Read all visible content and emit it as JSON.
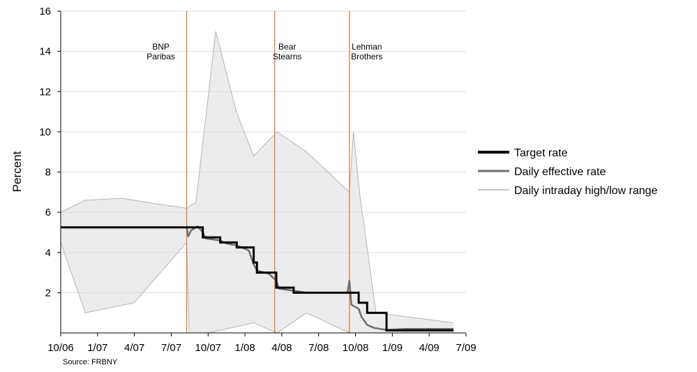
{
  "chart_data": {
    "type": "line",
    "xlabel": "",
    "ylabel": "Percent",
    "ylim": [
      0,
      16
    ],
    "xlim": [
      "2006-10",
      "2009-07"
    ],
    "x_ticks": [
      "10/06",
      "1/07",
      "4/07",
      "7/07",
      "10/07",
      "1/08",
      "4/08",
      "7/08",
      "10/08",
      "1/09",
      "4/09",
      "7/09"
    ],
    "y_ticks": [
      2,
      4,
      6,
      8,
      10,
      12,
      14,
      16
    ],
    "grid": "horizontal",
    "legend_position": "right",
    "source": "Source: FRBNY",
    "events": [
      {
        "label_lines": [
          "BNP",
          "Paribas"
        ],
        "date": "2007-08-09",
        "color": "#e07b39"
      },
      {
        "label_lines": [
          "Bear",
          "Stearns"
        ],
        "date": "2008-03-14",
        "color": "#e07b39"
      },
      {
        "label_lines": [
          "Lehman",
          "Brothers"
        ],
        "date": "2008-09-15",
        "color": "#e07b39"
      }
    ],
    "series": [
      {
        "name": "Target rate",
        "color": "#000000",
        "style": "step",
        "steps": [
          {
            "date": "2006-10-01",
            "value": 5.25
          },
          {
            "date": "2007-09-18",
            "value": 4.75
          },
          {
            "date": "2007-10-31",
            "value": 4.5
          },
          {
            "date": "2007-12-11",
            "value": 4.25
          },
          {
            "date": "2008-01-22",
            "value": 3.5
          },
          {
            "date": "2008-01-30",
            "value": 3.0
          },
          {
            "date": "2008-03-18",
            "value": 2.25
          },
          {
            "date": "2008-04-30",
            "value": 2.0
          },
          {
            "date": "2008-10-08",
            "value": 1.5
          },
          {
            "date": "2008-10-29",
            "value": 1.0
          },
          {
            "date": "2008-12-16",
            "value": 0.125
          },
          {
            "date": "2009-05-31",
            "value": 0.125
          }
        ]
      },
      {
        "name": "Daily effective rate",
        "color": "#6d6d6d",
        "points": [
          {
            "date": "2006-10-01",
            "value": 5.25
          },
          {
            "date": "2007-08-09",
            "value": 5.25
          },
          {
            "date": "2007-08-13",
            "value": 4.8
          },
          {
            "date": "2007-08-20",
            "value": 5.1
          },
          {
            "date": "2007-09-05",
            "value": 5.3
          },
          {
            "date": "2007-09-18",
            "value": 5.0
          },
          {
            "date": "2007-09-25",
            "value": 4.7
          },
          {
            "date": "2007-10-31",
            "value": 4.6
          },
          {
            "date": "2007-11-15",
            "value": 4.45
          },
          {
            "date": "2007-12-11",
            "value": 4.35
          },
          {
            "date": "2008-01-10",
            "value": 4.1
          },
          {
            "date": "2008-01-22",
            "value": 3.4
          },
          {
            "date": "2008-01-30",
            "value": 3.1
          },
          {
            "date": "2008-02-28",
            "value": 2.95
          },
          {
            "date": "2008-03-18",
            "value": 2.6
          },
          {
            "date": "2008-03-25",
            "value": 2.2
          },
          {
            "date": "2008-04-30",
            "value": 2.1
          },
          {
            "date": "2008-06-01",
            "value": 2.0
          },
          {
            "date": "2008-09-10",
            "value": 2.0
          },
          {
            "date": "2008-09-15",
            "value": 2.6
          },
          {
            "date": "2008-09-20",
            "value": 1.4
          },
          {
            "date": "2008-10-08",
            "value": 1.2
          },
          {
            "date": "2008-10-15",
            "value": 0.8
          },
          {
            "date": "2008-10-29",
            "value": 0.4
          },
          {
            "date": "2008-11-15",
            "value": 0.25
          },
          {
            "date": "2008-12-16",
            "value": 0.15
          },
          {
            "date": "2009-02-01",
            "value": 0.2
          },
          {
            "date": "2009-05-31",
            "value": 0.2
          }
        ]
      },
      {
        "name": "Daily intraday high/low range",
        "color": "#b4b4b4",
        "high": [
          {
            "date": "2006-10-01",
            "value": 6.0
          },
          {
            "date": "2006-12-01",
            "value": 6.6
          },
          {
            "date": "2007-03-01",
            "value": 6.7
          },
          {
            "date": "2007-06-01",
            "value": 6.4
          },
          {
            "date": "2007-08-09",
            "value": 6.2
          },
          {
            "date": "2007-09-01",
            "value": 6.5
          },
          {
            "date": "2007-10-20",
            "value": 15.0
          },
          {
            "date": "2007-12-10",
            "value": 11.0
          },
          {
            "date": "2008-01-22",
            "value": 8.8
          },
          {
            "date": "2008-03-20",
            "value": 10.0
          },
          {
            "date": "2008-06-01",
            "value": 9.0
          },
          {
            "date": "2008-09-15",
            "value": 7.0
          },
          {
            "date": "2008-09-25",
            "value": 10.0
          },
          {
            "date": "2008-10-10",
            "value": 7.0
          },
          {
            "date": "2008-11-20",
            "value": 1.0
          },
          {
            "date": "2009-05-31",
            "value": 0.5
          }
        ],
        "low": [
          {
            "date": "2006-10-01",
            "value": 4.5
          },
          {
            "date": "2006-12-01",
            "value": 1.0
          },
          {
            "date": "2007-04-01",
            "value": 1.5
          },
          {
            "date": "2007-08-09",
            "value": 4.5
          },
          {
            "date": "2007-08-15",
            "value": 0.0
          },
          {
            "date": "2007-10-01",
            "value": 0.0
          },
          {
            "date": "2008-01-22",
            "value": 0.5
          },
          {
            "date": "2008-03-20",
            "value": 0.0
          },
          {
            "date": "2008-06-01",
            "value": 1.0
          },
          {
            "date": "2008-09-15",
            "value": 0.0
          },
          {
            "date": "2008-11-01",
            "value": 0.0
          },
          {
            "date": "2009-05-31",
            "value": 0.0
          }
        ]
      }
    ]
  }
}
